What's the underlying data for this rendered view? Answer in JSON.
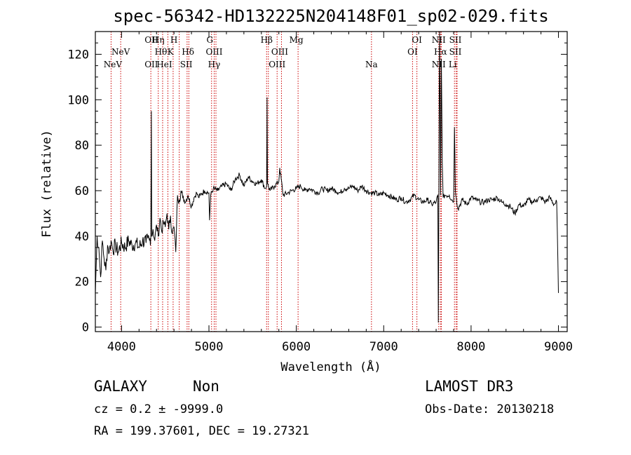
{
  "chart_data": {
    "type": "line",
    "title": "spec-56342-HD132225N204148F01_sp02-029.fits",
    "xlabel": "Wavelength (Å)",
    "ylabel": "Flux (relative)",
    "xlim": [
      3700,
      9100
    ],
    "ylim": [
      -2,
      130
    ],
    "xticks": [
      4000,
      5000,
      6000,
      7000,
      8000,
      9000
    ],
    "yticks": [
      0,
      20,
      40,
      60,
      80,
      100,
      120
    ],
    "line_color": "#000000",
    "marker_color": "#cc0000",
    "series": [
      {
        "x": [
          3700,
          3720,
          3740,
          3760,
          3780,
          3800,
          3820,
          3840,
          3860,
          3880,
          3900,
          3930,
          3960,
          4000,
          4040,
          4080,
          4120,
          4160,
          4200,
          4240,
          4280,
          4300,
          4320,
          4335,
          4341,
          4345,
          4360,
          4380,
          4400,
          4420,
          4440,
          4460,
          4480,
          4500,
          4520,
          4540,
          4560,
          4580,
          4600,
          4620,
          4640,
          4660,
          4680,
          4700,
          4730,
          4760,
          4800,
          4830,
          4861,
          4880,
          4900,
          4950,
          5000,
          5007,
          5020,
          5050,
          5100,
          5150,
          5200,
          5250,
          5300,
          5350,
          5400,
          5450,
          5500,
          5550,
          5600,
          5640,
          5660,
          5665,
          5670,
          5700,
          5750,
          5800,
          5810,
          5850,
          5900,
          5950,
          6000,
          6050,
          6100,
          6150,
          6200,
          6250,
          6300,
          6350,
          6400,
          6450,
          6500,
          6550,
          6600,
          6650,
          6700,
          6750,
          6800,
          6850,
          6900,
          6950,
          7000,
          7050,
          7100,
          7150,
          7200,
          7250,
          7300,
          7350,
          7400,
          7450,
          7500,
          7550,
          7600,
          7620,
          7625,
          7640,
          7650,
          7660,
          7670,
          7680,
          7700,
          7750,
          7780,
          7800,
          7810,
          7820,
          7830,
          7850,
          7900,
          7950,
          8000,
          8050,
          8100,
          8150,
          8200,
          8250,
          8300,
          8350,
          8400,
          8450,
          8500,
          8550,
          8600,
          8650,
          8700,
          8750,
          8800,
          8850,
          8900,
          8950,
          8980,
          9000
        ],
        "y": [
          15,
          40,
          35,
          22,
          38,
          30,
          25,
          36,
          33,
          38,
          34,
          36,
          33,
          37,
          35,
          38,
          36,
          37,
          35,
          38,
          37,
          39,
          38,
          40,
          95,
          40,
          43,
          38,
          45,
          40,
          48,
          42,
          46,
          44,
          50,
          43,
          49,
          41,
          44,
          33,
          58,
          56,
          60,
          57,
          55,
          58,
          53,
          57,
          59,
          57,
          58,
          60,
          59,
          47,
          58,
          61,
          60,
          62,
          63,
          60,
          65,
          67,
          62,
          66,
          64,
          63,
          65,
          61,
          62,
          101,
          63,
          60,
          62,
          64,
          70,
          58,
          59,
          60,
          61,
          62,
          60,
          61,
          60,
          59,
          61,
          60,
          61,
          60,
          59,
          61,
          61,
          62,
          60,
          62,
          60,
          59,
          59,
          58,
          59,
          58,
          57,
          56,
          57,
          55,
          56,
          58,
          56,
          55,
          56,
          54,
          55,
          58,
          2,
          135,
          58,
          118,
          72,
          57,
          58,
          58,
          56,
          55,
          88,
          60,
          57,
          52,
          56,
          54,
          57,
          56,
          55,
          55,
          56,
          56,
          57,
          55,
          54,
          53,
          50,
          54,
          53,
          56,
          55,
          56,
          57,
          55,
          57,
          54,
          55,
          15
        ]
      }
    ],
    "emission_lines": [
      {
        "label": "NeV",
        "x": 3900,
        "row": 3
      },
      {
        "label": "NeV",
        "x": 3990,
        "row": 2
      },
      {
        "label": "OII",
        "x": 4341,
        "row": 1
      },
      {
        "label": "OII",
        "x": 4341,
        "row": 3
      },
      {
        "label": "Hη",
        "x": 4420,
        "row": 1
      },
      {
        "label": "Hθ",
        "x": 4450,
        "row": 2
      },
      {
        "label": "HeI",
        "x": 4490,
        "row": 3
      },
      {
        "label": "H",
        "x": 4600,
        "row": 1
      },
      {
        "label": "K",
        "x": 4560,
        "row": 2
      },
      {
        "label": "Hδ",
        "x": 4760,
        "row": 2
      },
      {
        "label": "SII",
        "x": 4740,
        "row": 3
      },
      {
        "label": "G",
        "x": 5010,
        "row": 1
      },
      {
        "label": "OIII",
        "x": 5060,
        "row": 2
      },
      {
        "label": "Hγ",
        "x": 5060,
        "row": 3
      },
      {
        "label": "Hβ",
        "x": 5660,
        "row": 1
      },
      {
        "label": "OIII",
        "x": 5810,
        "row": 2
      },
      {
        "label": "OIII",
        "x": 5780,
        "row": 3
      },
      {
        "label": "Mg",
        "x": 6000,
        "row": 1
      },
      {
        "label": "Na",
        "x": 6860,
        "row": 3
      },
      {
        "label": "OI",
        "x": 7380,
        "row": 1
      },
      {
        "label": "OI",
        "x": 7330,
        "row": 2
      },
      {
        "label": "NII",
        "x": 7630,
        "row": 1
      },
      {
        "label": "Hα",
        "x": 7650,
        "row": 2
      },
      {
        "label": "NII",
        "x": 7630,
        "row": 3
      },
      {
        "label": "SII",
        "x": 7820,
        "row": 1
      },
      {
        "label": "SII",
        "x": 7820,
        "row": 2
      },
      {
        "label": "Li",
        "x": 7790,
        "row": 3
      }
    ],
    "marker_lines_x": [
      3880,
      3990,
      4335,
      4420,
      4470,
      4530,
      4590,
      4660,
      4750,
      4770,
      5030,
      5060,
      5080,
      5660,
      5680,
      5780,
      5830,
      6020,
      6860,
      7330,
      7380,
      7630,
      7650,
      7660,
      7810,
      7830,
      7840
    ]
  },
  "info": {
    "class": "GALAXY",
    "subclass": "Non",
    "survey": "LAMOST DR3",
    "cz": "cz = 0.2 ± -9999.0",
    "obs_date": "Obs-Date: 20130218",
    "radec": "RA = 199.37601, DEC =  19.27321"
  }
}
